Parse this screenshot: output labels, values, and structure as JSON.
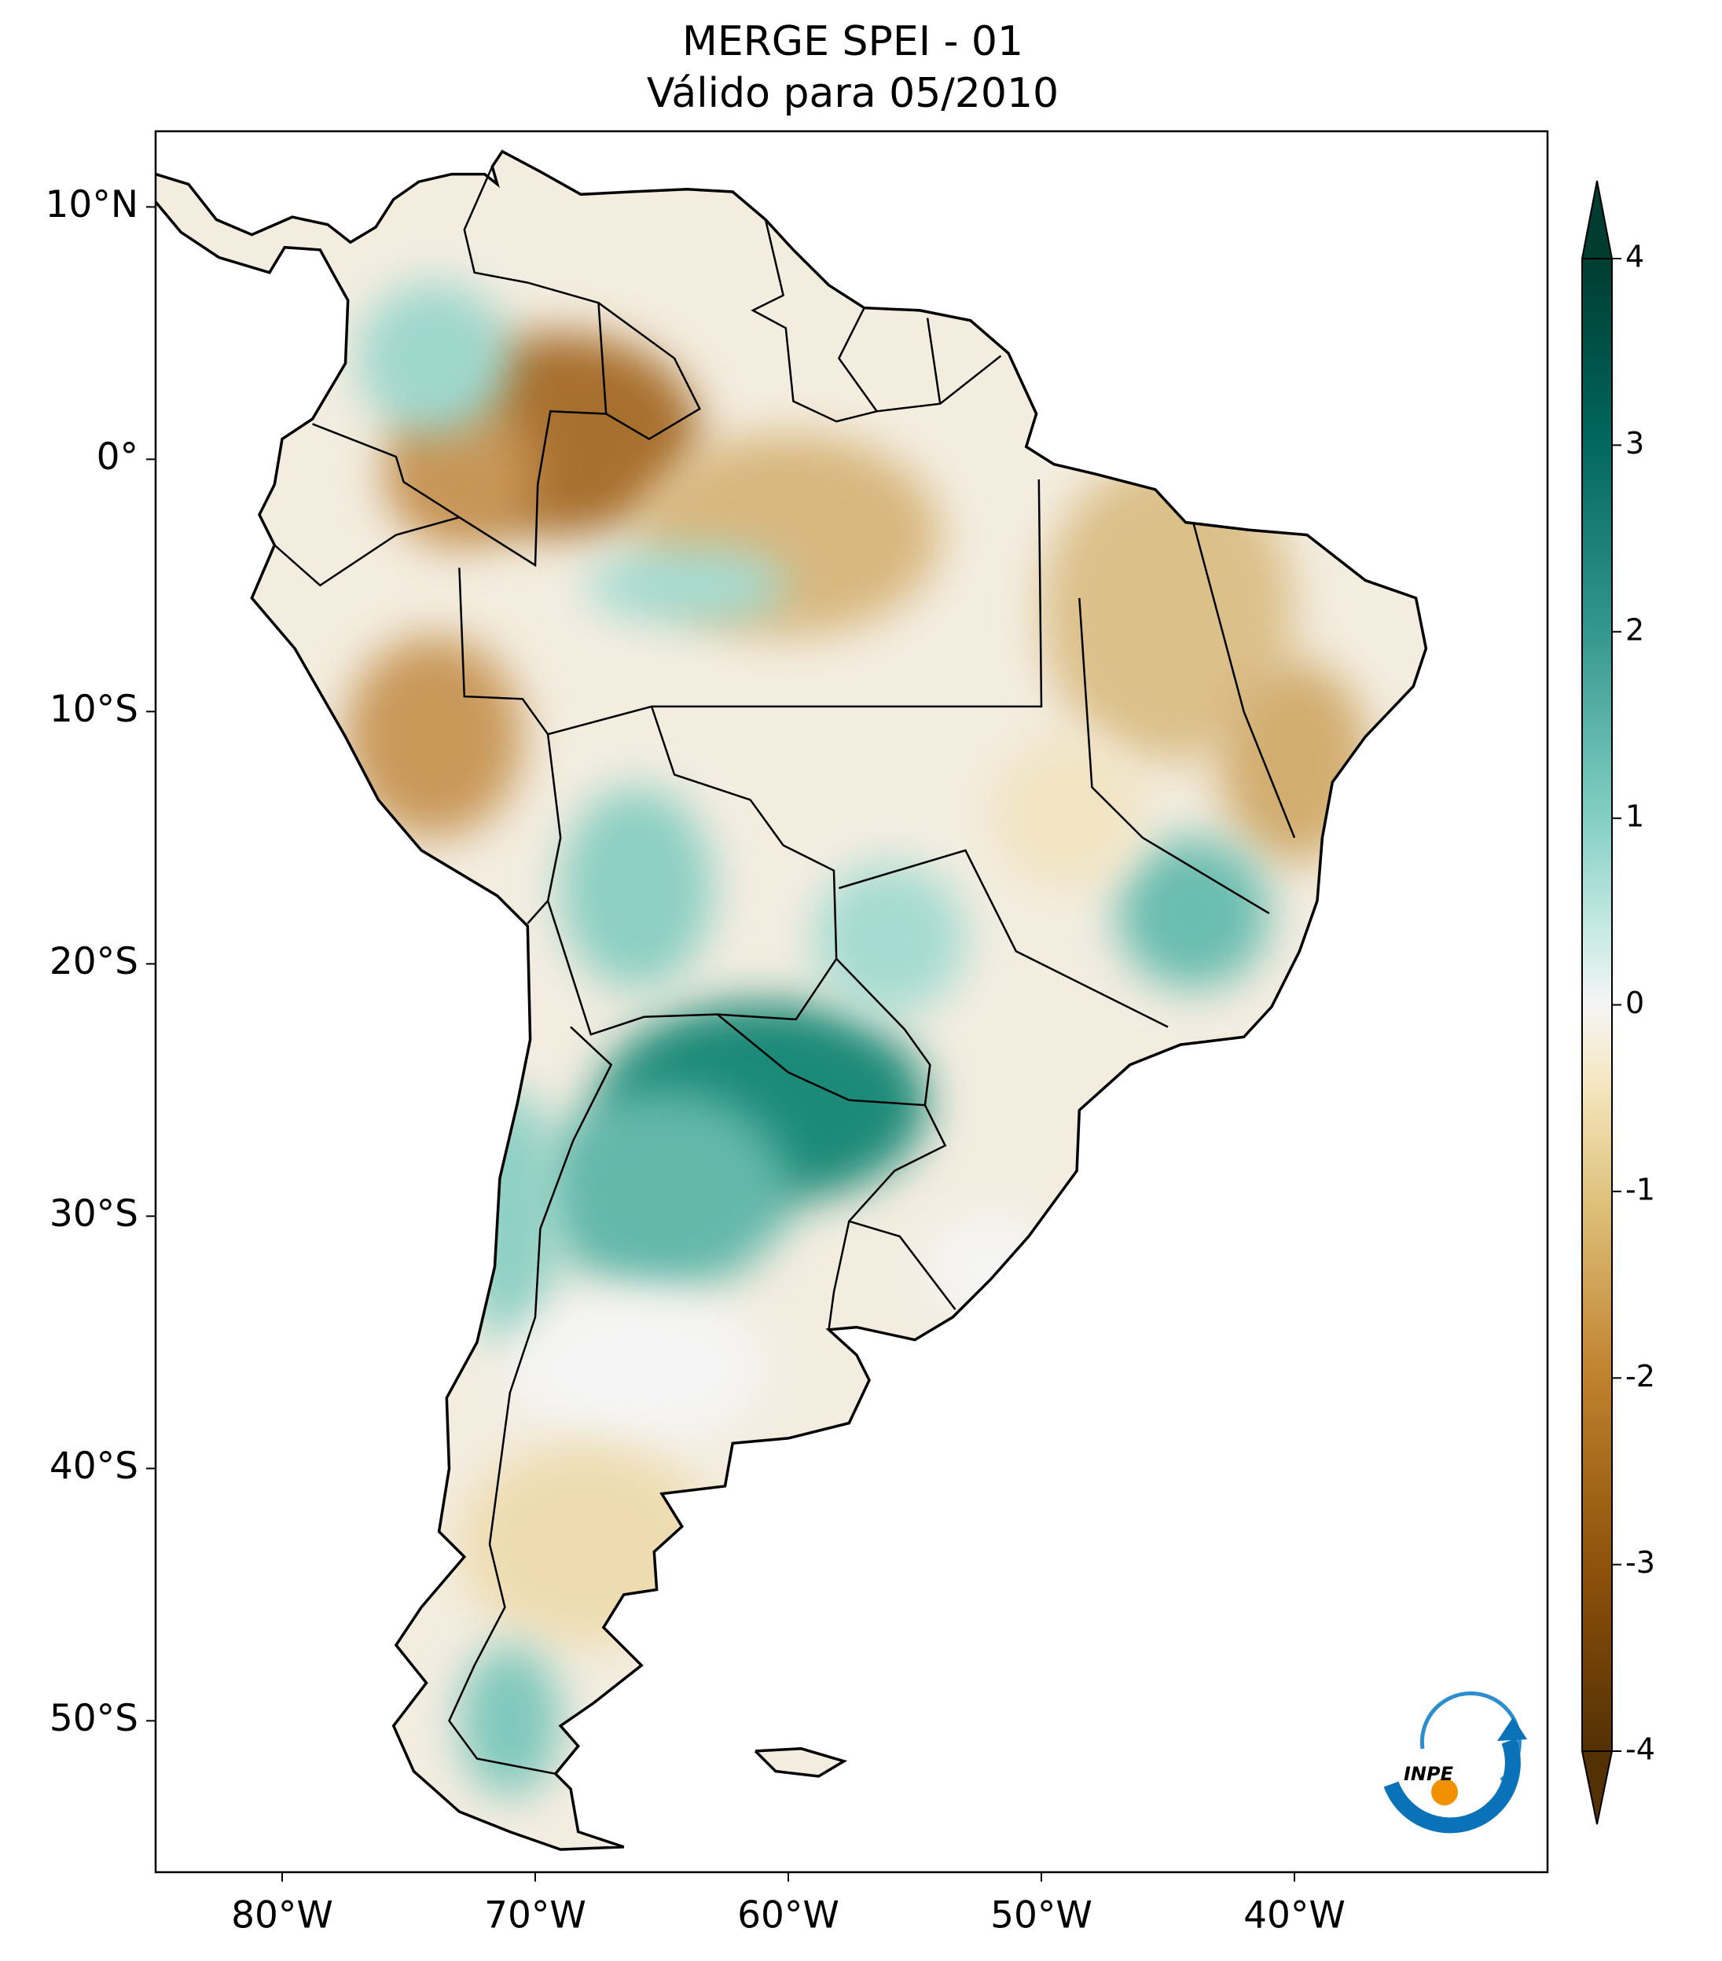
{
  "chart_data": {
    "type": "map",
    "title": "MERGE   SPEI - 01",
    "subtitle": "Válido para 05/2010",
    "xlim": [
      -85,
      -30
    ],
    "ylim": [
      -56,
      13
    ],
    "xticks": [
      {
        "value": -80,
        "label": "80°W"
      },
      {
        "value": -70,
        "label": "70°W"
      },
      {
        "value": -60,
        "label": "60°W"
      },
      {
        "value": -50,
        "label": "50°W"
      },
      {
        "value": -40,
        "label": "40°W"
      }
    ],
    "yticks": [
      {
        "value": 10,
        "label": "10°N"
      },
      {
        "value": 0,
        "label": "0°"
      },
      {
        "value": -10,
        "label": "10°S"
      },
      {
        "value": -20,
        "label": "20°S"
      },
      {
        "value": -30,
        "label": "30°S"
      },
      {
        "value": -40,
        "label": "40°S"
      },
      {
        "value": -50,
        "label": "50°S"
      }
    ],
    "colorbar": {
      "clim": [
        -4,
        4
      ],
      "ticks": [
        4,
        3,
        2,
        1,
        0,
        -1,
        -2,
        -3,
        -4
      ],
      "colormap": "BrBG",
      "extend": "both"
    },
    "logo": "INPE"
  }
}
